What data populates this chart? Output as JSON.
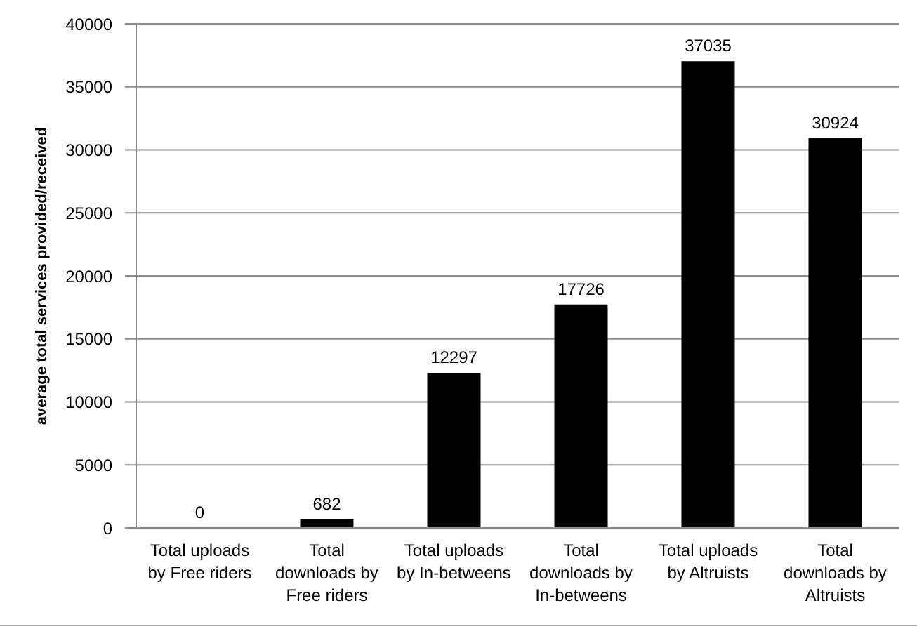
{
  "chart_data": {
    "type": "bar",
    "ylabel": "average total services provided/received",
    "categories": [
      "Total uploads by Free riders",
      "Total downloads by Free riders",
      "Total uploads by In-betweens",
      "Total downloads by In-betweens",
      "Total uploads by Altruists",
      "Total downloads by Altruists"
    ],
    "values": [
      0,
      682,
      12297,
      17726,
      37035,
      30924
    ],
    "color": "#000000",
    "ylim": [
      0,
      40000
    ],
    "yticks": [
      0,
      5000,
      10000,
      15000,
      20000,
      25000,
      30000,
      35000,
      40000
    ],
    "grid": "y",
    "data_labels": true
  }
}
